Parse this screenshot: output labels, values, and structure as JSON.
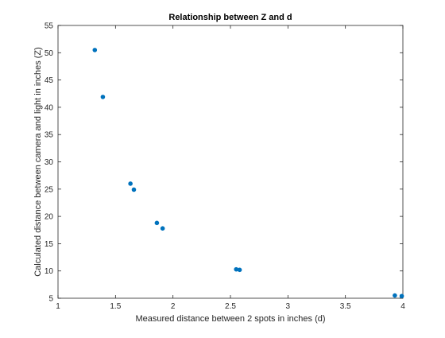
{
  "chart_data": {
    "type": "scatter",
    "title": "Relationship between Z and d",
    "xlabel": "Measured distance between 2 spots in inches (d)",
    "ylabel": "Calculated distance between camera and light in inches (Z)",
    "xlim": [
      1,
      4
    ],
    "ylim": [
      5,
      55
    ],
    "xticks": [
      "1",
      "1.5",
      "2",
      "2.5",
      "3",
      "3.5",
      "4"
    ],
    "yticks": [
      "5",
      "10",
      "15",
      "20",
      "25",
      "30",
      "35",
      "40",
      "45",
      "50",
      "55"
    ],
    "grid": false,
    "marker_color": "#0072BD",
    "axis_color": "#262626",
    "points": [
      {
        "x": 1.32,
        "y": 50.5
      },
      {
        "x": 1.39,
        "y": 41.9
      },
      {
        "x": 1.63,
        "y": 26.0
      },
      {
        "x": 1.66,
        "y": 24.9
      },
      {
        "x": 1.86,
        "y": 18.8
      },
      {
        "x": 1.91,
        "y": 17.8
      },
      {
        "x": 2.55,
        "y": 10.3
      },
      {
        "x": 2.58,
        "y": 10.2
      },
      {
        "x": 3.93,
        "y": 5.5
      },
      {
        "x": 3.99,
        "y": 5.4
      }
    ]
  }
}
